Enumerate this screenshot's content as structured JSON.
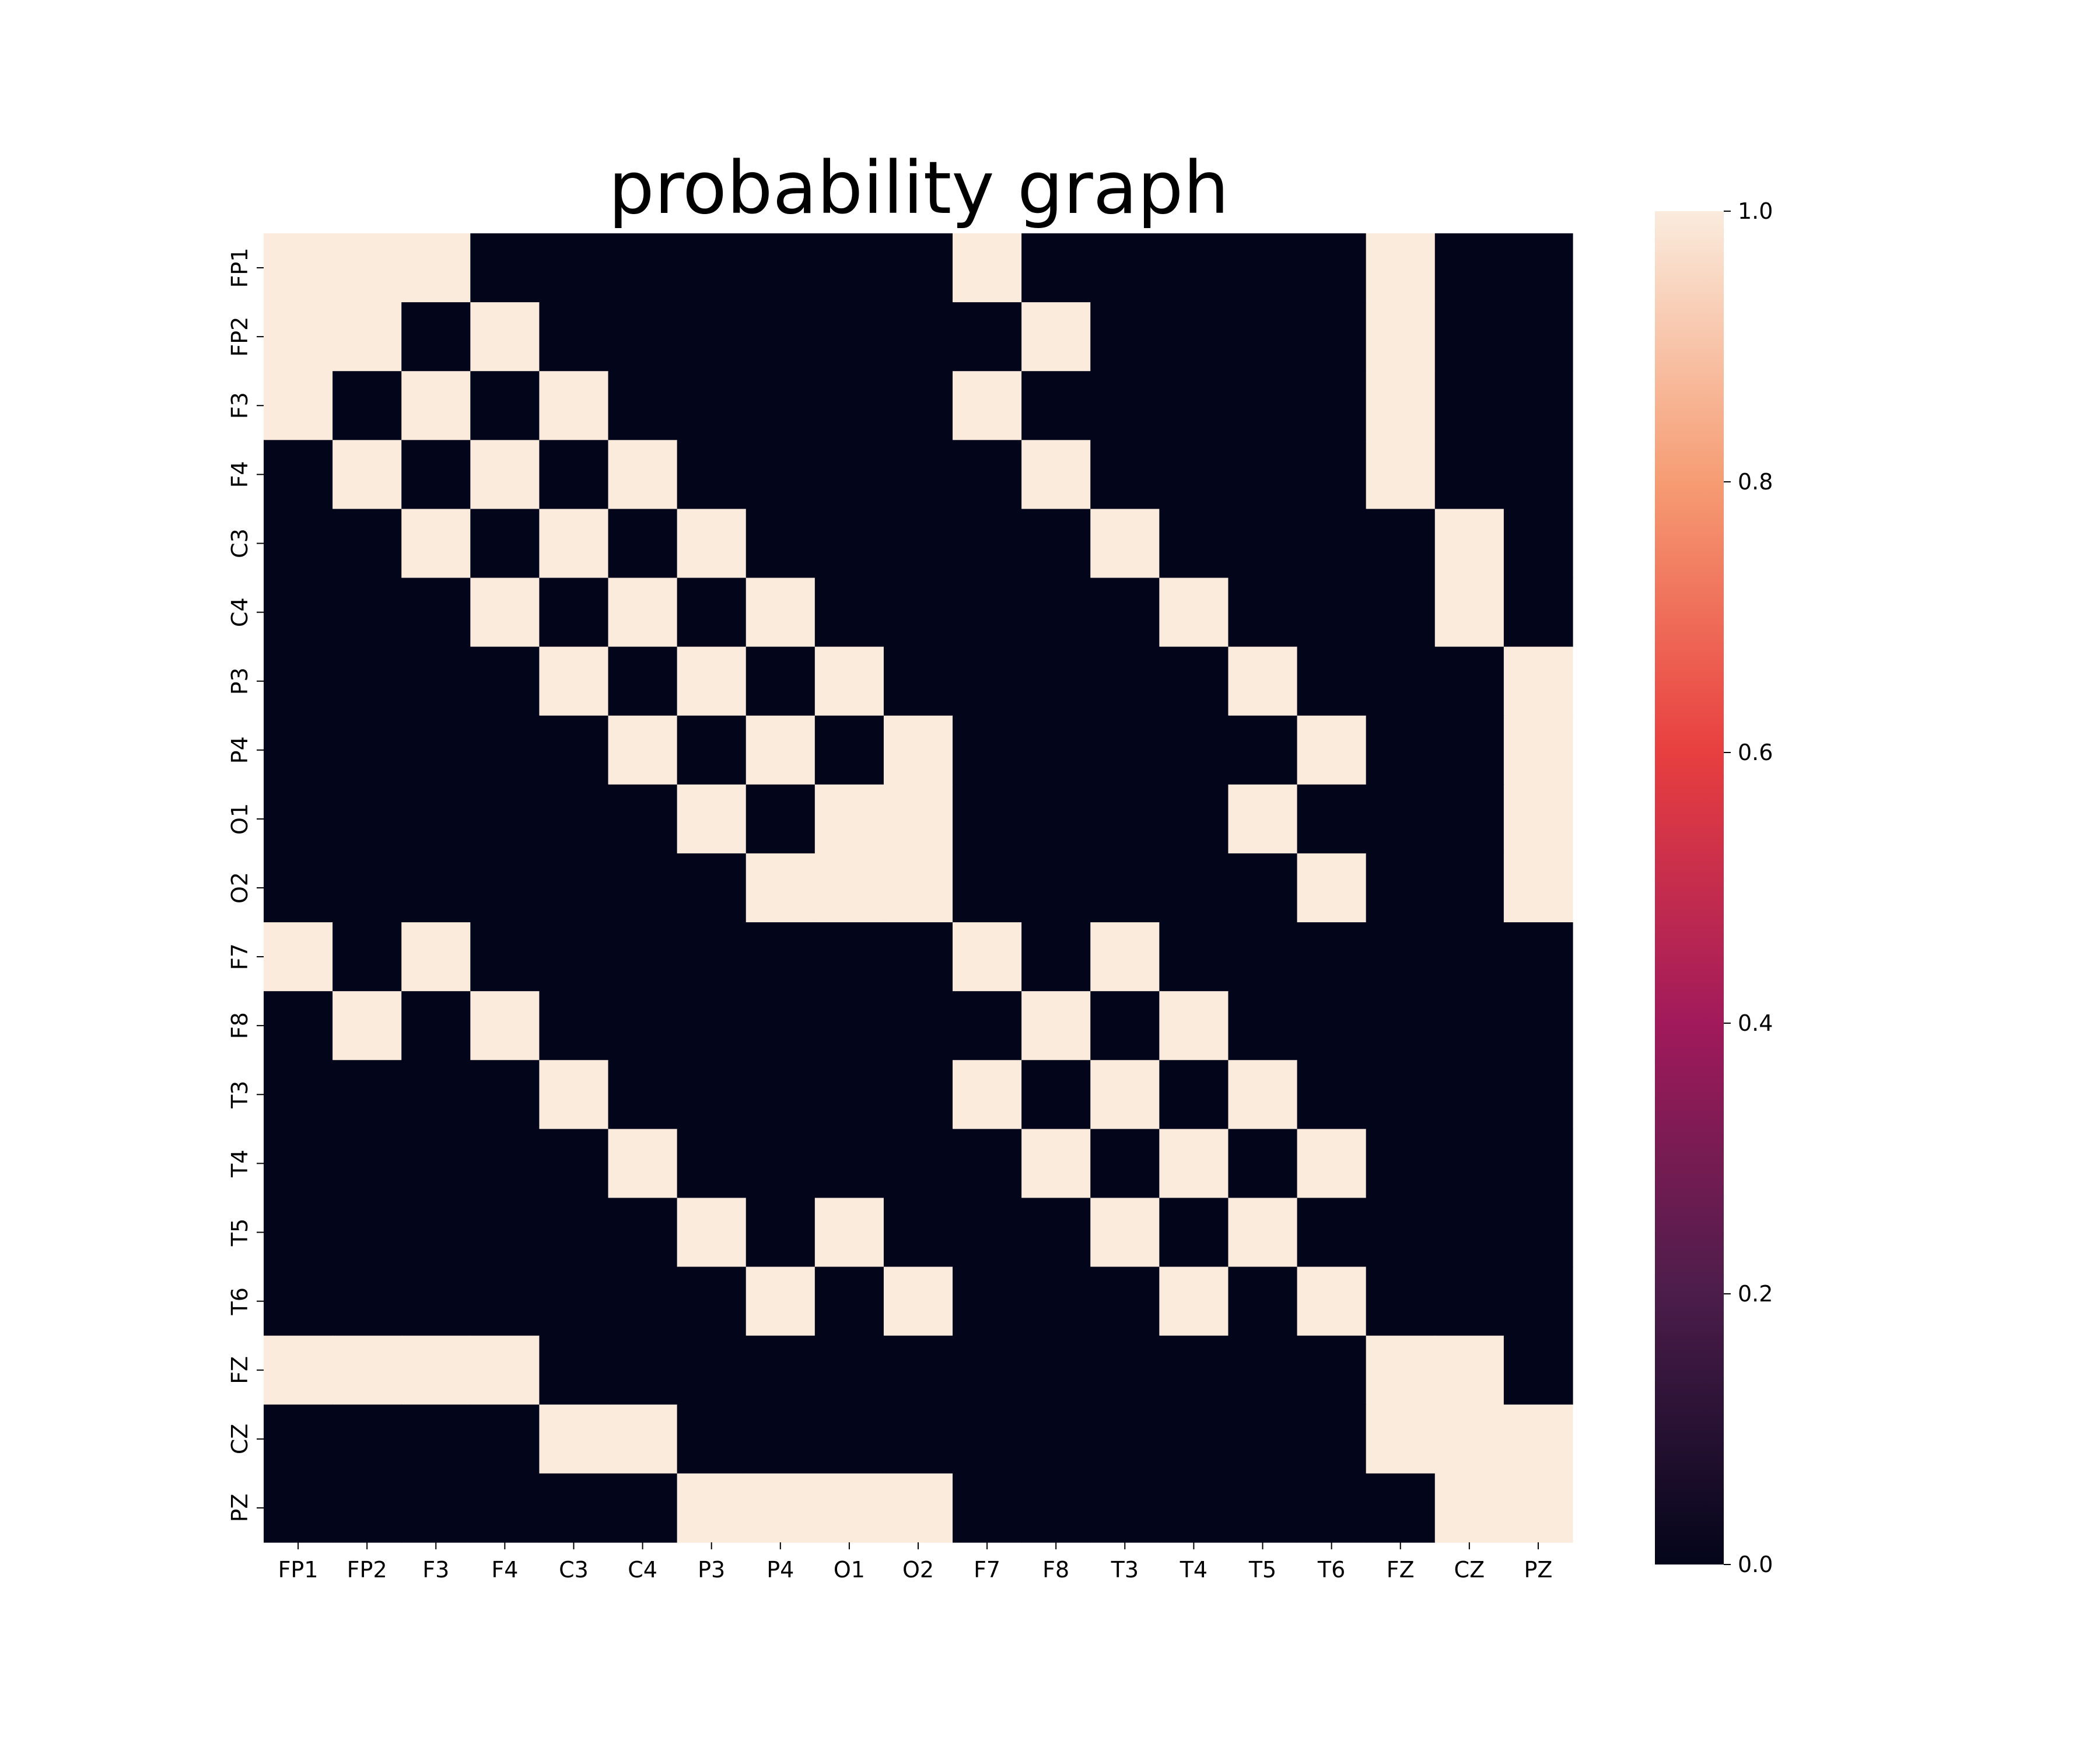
{
  "chart_data": {
    "type": "heatmap",
    "title": "probability graph",
    "xlabel": "",
    "ylabel": "",
    "x_labels": [
      "FP1",
      "FP2",
      "F3",
      "F4",
      "C3",
      "C4",
      "P3",
      "P4",
      "O1",
      "O2",
      "F7",
      "F8",
      "T3",
      "T4",
      "T5",
      "T6",
      "FZ",
      "CZ",
      "PZ"
    ],
    "y_labels": [
      "FP1",
      "FP2",
      "F3",
      "F4",
      "C3",
      "C4",
      "P3",
      "P4",
      "O1",
      "O2",
      "F7",
      "F8",
      "T3",
      "T4",
      "T5",
      "T6",
      "FZ",
      "CZ",
      "PZ"
    ],
    "values": [
      [
        1,
        1,
        1,
        0,
        0,
        0,
        0,
        0,
        0,
        0,
        1,
        0,
        0,
        0,
        0,
        0,
        1,
        0,
        0
      ],
      [
        1,
        1,
        0,
        1,
        0,
        0,
        0,
        0,
        0,
        0,
        0,
        1,
        0,
        0,
        0,
        0,
        1,
        0,
        0
      ],
      [
        1,
        0,
        1,
        0,
        1,
        0,
        0,
        0,
        0,
        0,
        1,
        0,
        0,
        0,
        0,
        0,
        1,
        0,
        0
      ],
      [
        0,
        1,
        0,
        1,
        0,
        1,
        0,
        0,
        0,
        0,
        0,
        1,
        0,
        0,
        0,
        0,
        1,
        0,
        0
      ],
      [
        0,
        0,
        1,
        0,
        1,
        0,
        1,
        0,
        0,
        0,
        0,
        0,
        1,
        0,
        0,
        0,
        0,
        1,
        0
      ],
      [
        0,
        0,
        0,
        1,
        0,
        1,
        0,
        1,
        0,
        0,
        0,
        0,
        0,
        1,
        0,
        0,
        0,
        1,
        0
      ],
      [
        0,
        0,
        0,
        0,
        1,
        0,
        1,
        0,
        1,
        0,
        0,
        0,
        0,
        0,
        1,
        0,
        0,
        0,
        1
      ],
      [
        0,
        0,
        0,
        0,
        0,
        1,
        0,
        1,
        0,
        1,
        0,
        0,
        0,
        0,
        0,
        1,
        0,
        0,
        1
      ],
      [
        0,
        0,
        0,
        0,
        0,
        0,
        1,
        0,
        1,
        1,
        0,
        0,
        0,
        0,
        1,
        0,
        0,
        0,
        1
      ],
      [
        0,
        0,
        0,
        0,
        0,
        0,
        0,
        1,
        1,
        1,
        0,
        0,
        0,
        0,
        0,
        1,
        0,
        0,
        1
      ],
      [
        1,
        0,
        1,
        0,
        0,
        0,
        0,
        0,
        0,
        0,
        1,
        0,
        1,
        0,
        0,
        0,
        0,
        0,
        0
      ],
      [
        0,
        1,
        0,
        1,
        0,
        0,
        0,
        0,
        0,
        0,
        0,
        1,
        0,
        1,
        0,
        0,
        0,
        0,
        0
      ],
      [
        0,
        0,
        0,
        0,
        1,
        0,
        0,
        0,
        0,
        0,
        1,
        0,
        1,
        0,
        1,
        0,
        0,
        0,
        0
      ],
      [
        0,
        0,
        0,
        0,
        0,
        1,
        0,
        0,
        0,
        0,
        0,
        1,
        0,
        1,
        0,
        1,
        0,
        0,
        0
      ],
      [
        0,
        0,
        0,
        0,
        0,
        0,
        1,
        0,
        1,
        0,
        0,
        0,
        1,
        0,
        1,
        0,
        0,
        0,
        0
      ],
      [
        0,
        0,
        0,
        0,
        0,
        0,
        0,
        1,
        0,
        1,
        0,
        0,
        0,
        1,
        0,
        1,
        0,
        0,
        0
      ],
      [
        1,
        1,
        1,
        1,
        0,
        0,
        0,
        0,
        0,
        0,
        0,
        0,
        0,
        0,
        0,
        0,
        1,
        1,
        0
      ],
      [
        0,
        0,
        0,
        0,
        1,
        1,
        0,
        0,
        0,
        0,
        0,
        0,
        0,
        0,
        0,
        0,
        1,
        1,
        1
      ],
      [
        0,
        0,
        0,
        0,
        0,
        0,
        1,
        1,
        1,
        1,
        0,
        0,
        0,
        0,
        0,
        0,
        0,
        1,
        1
      ]
    ],
    "vmin": 0,
    "vmax": 1,
    "colorbar_ticks": [
      "0.0",
      "0.2",
      "0.4",
      "0.6",
      "0.8",
      "1.0"
    ],
    "colormap": {
      "name": "rocket",
      "stops": [
        "#03051a",
        "#4c1d4b",
        "#a11a5b",
        "#e83f3f",
        "#f69c73",
        "#faebdd"
      ]
    },
    "cell_color_low": "#03051a",
    "cell_color_high": "#faebdd",
    "grid": false,
    "legend": "colorbar-right"
  }
}
